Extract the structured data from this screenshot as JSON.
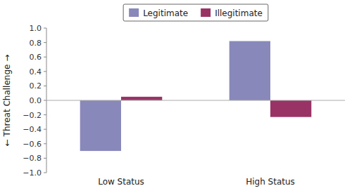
{
  "chart_data": {
    "type": "bar",
    "categories": [
      "Low Status",
      "High Status"
    ],
    "series": [
      {
        "name": "Legitimate",
        "color": "#8888BB",
        "values": [
          -0.7,
          0.82
        ]
      },
      {
        "name": "Illegitimate",
        "color": "#993366",
        "values": [
          0.05,
          -0.23
        ]
      }
    ],
    "y_label": "← Threat  Challenge →",
    "ylim": [
      -1,
      1
    ],
    "yticks": [
      {
        "value": -1,
        "label": "−1.0"
      },
      {
        "value": -0.8,
        "label": "−0.8"
      },
      {
        "value": -0.6,
        "label": "−0.6"
      },
      {
        "value": -0.4,
        "label": "−0.4"
      },
      {
        "value": -0.2,
        "label": "−0.2"
      },
      {
        "value": 0,
        "label": "0.0"
      },
      0.2,
      0.4,
      0.6,
      0.8,
      {
        "value": 1,
        "label": "1.0"
      }
    ],
    "grid": false,
    "legend": "top"
  }
}
